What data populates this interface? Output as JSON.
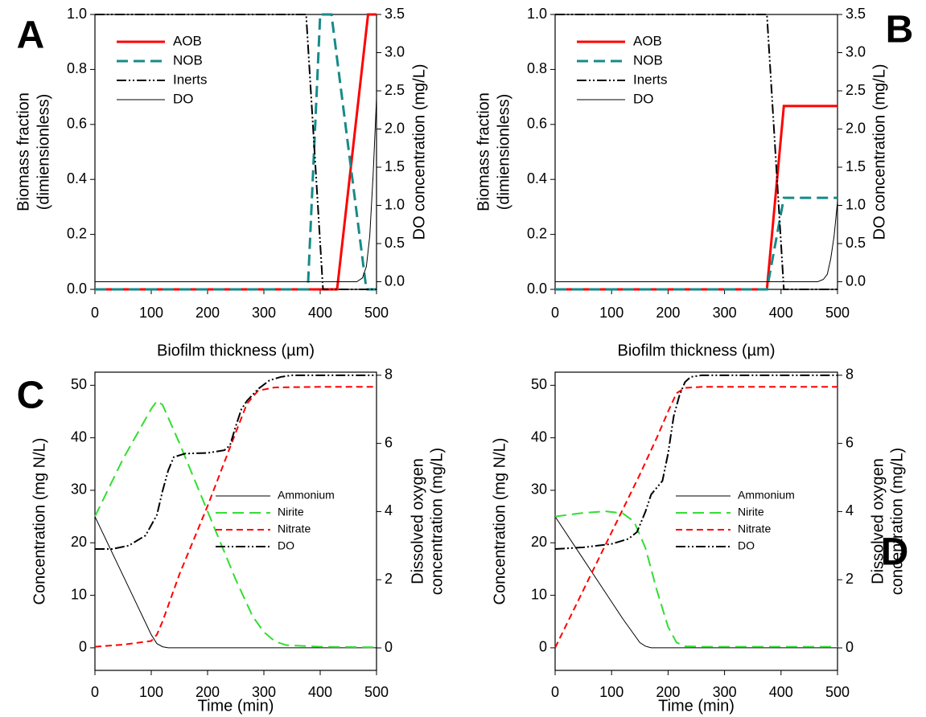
{
  "chart_data": [
    {
      "type": "line",
      "panel_label": "A",
      "xlabel": "Biofilm thickness (µm)",
      "ylabel": [
        "Biomass fraction",
        "(dimiensionless)"
      ],
      "y2label": [
        "DO concentration (mg/L)"
      ],
      "xlim": [
        0,
        500
      ],
      "xticks": [
        0,
        100,
        200,
        300,
        400,
        500
      ],
      "ylim": [
        0,
        1
      ],
      "yticks": [
        {
          "value": 0,
          "label": "0.0"
        },
        0.2,
        0.4,
        0.6,
        0.8,
        {
          "value": 1,
          "label": "1.0"
        }
      ],
      "y2lim": [
        -0.1,
        3.5
      ],
      "y2ticks": [
        {
          "value": 0,
          "label": "0.0"
        },
        0.5,
        {
          "value": 1,
          "label": "1.0"
        },
        1.5,
        {
          "value": 2,
          "label": "2.0"
        },
        2.5,
        {
          "value": 3,
          "label": "3.0"
        },
        3.5
      ],
      "legend": "upper left",
      "series": [
        {
          "name": "AOB",
          "color": "#ff0000",
          "dash": "solid",
          "width": 3,
          "x": [
            0,
            430,
            485,
            500
          ],
          "values": [
            0,
            0,
            1,
            1
          ]
        },
        {
          "name": "NOB",
          "color": "#168a8a",
          "dash": "long-dash",
          "width": 3,
          "x": [
            0,
            378,
            400,
            420,
            482,
            500
          ],
          "values": [
            0,
            0,
            1,
            1,
            0,
            0
          ]
        },
        {
          "name": "Inerts",
          "color": "#000000",
          "dash": "dash-dot-dot",
          "width": 2,
          "x": [
            0,
            375,
            405,
            500
          ],
          "values": [
            1,
            1,
            0,
            0
          ]
        },
        {
          "name": "DO",
          "color": "#000000",
          "dash": "solid",
          "width": 1,
          "axis": "y2",
          "x": [
            0,
            465,
            475,
            482,
            488,
            494,
            500
          ],
          "values": [
            0,
            0,
            0.05,
            0.2,
            0.6,
            1.4,
            2.4
          ]
        }
      ]
    },
    {
      "type": "line",
      "panel_label": "B",
      "xlabel": "Biofilm thickness (µm)",
      "ylabel": [
        "Biomass fraction",
        "(dimiensionless)"
      ],
      "y2label": [
        "DO concentration (mg/L)"
      ],
      "xlim": [
        0,
        500
      ],
      "xticks": [
        0,
        100,
        200,
        300,
        400,
        500
      ],
      "ylim": [
        0,
        1
      ],
      "yticks": [
        {
          "value": 0,
          "label": "0.0"
        },
        0.2,
        0.4,
        0.6,
        0.8,
        {
          "value": 1,
          "label": "1.0"
        }
      ],
      "y2lim": [
        -0.1,
        3.5
      ],
      "y2ticks": [
        {
          "value": 0,
          "label": "0.0"
        },
        0.5,
        {
          "value": 1,
          "label": "1.0"
        },
        1.5,
        {
          "value": 2,
          "label": "2.0"
        },
        2.5,
        {
          "value": 3,
          "label": "3.0"
        },
        3.5
      ],
      "legend": "upper left",
      "series": [
        {
          "name": "AOB",
          "color": "#ff0000",
          "dash": "solid",
          "width": 3,
          "x": [
            0,
            375,
            405,
            500
          ],
          "values": [
            0,
            0,
            0.667,
            0.667
          ]
        },
        {
          "name": "NOB",
          "color": "#168a8a",
          "dash": "long-dash",
          "width": 3,
          "x": [
            0,
            375,
            405,
            500
          ],
          "values": [
            0,
            0,
            0.333,
            0.333
          ]
        },
        {
          "name": "Inerts",
          "color": "#000000",
          "dash": "dash-dot-dot",
          "width": 2,
          "x": [
            0,
            375,
            405,
            500
          ],
          "values": [
            1,
            1,
            0,
            0
          ]
        },
        {
          "name": "DO",
          "color": "#000000",
          "dash": "solid",
          "width": 1,
          "axis": "y2",
          "x": [
            0,
            465,
            475,
            482,
            488,
            494,
            500
          ],
          "values": [
            0,
            0,
            0.03,
            0.1,
            0.3,
            0.6,
            1.05
          ]
        }
      ]
    },
    {
      "type": "line",
      "panel_label": "C",
      "xlabel": "Time (min)",
      "ylabel": [
        "Concentration (mg N/L)"
      ],
      "y2label": [
        "Dissolved oxygen",
        "concentration (mg/L)"
      ],
      "xlim": [
        0,
        500
      ],
      "xticks": [
        0,
        100,
        200,
        300,
        400,
        500
      ],
      "ylim": [
        -4.3,
        52.5
      ],
      "yticks": [
        0,
        10,
        20,
        30,
        40,
        50
      ],
      "y2lim": [
        -0.66,
        8.09
      ],
      "y2ticks": [
        0,
        2,
        4,
        6,
        8
      ],
      "legend": "center right",
      "series": [
        {
          "name": "Ammonium",
          "color": "#000000",
          "dash": "solid",
          "width": 1,
          "x": [
            0,
            20,
            40,
            60,
            80,
            100,
            110,
            120,
            130,
            500
          ],
          "values": [
            25,
            20.5,
            16,
            11.5,
            7,
            2.5,
            0.8,
            0.2,
            0,
            0
          ]
        },
        {
          "name": "Nirite",
          "color": "#33dd33",
          "dash": "long-dash",
          "width": 2,
          "x": [
            0,
            50,
            100,
            110,
            120,
            150,
            200,
            250,
            280,
            300,
            320,
            340,
            400,
            500
          ],
          "values": [
            25,
            36,
            45.5,
            47,
            46.3,
            39,
            26,
            13,
            6,
            3,
            1.2,
            0.5,
            0.2,
            0.1
          ]
        },
        {
          "name": "Nitrate",
          "color": "#ff0000",
          "dash": "dash",
          "width": 2,
          "x": [
            0,
            50,
            100,
            110,
            120,
            150,
            200,
            250,
            270,
            290,
            320,
            400,
            500
          ],
          "values": [
            0.2,
            0.6,
            1.3,
            2.5,
            5,
            14,
            27,
            41,
            46.5,
            49,
            49.6,
            49.7,
            49.7
          ]
        },
        {
          "name": "DO",
          "color": "#000000",
          "dash": "dash-dot-dot",
          "width": 2,
          "axis": "y2",
          "x": [
            0,
            30,
            60,
            90,
            110,
            120,
            130,
            140,
            160,
            200,
            230,
            240,
            250,
            260,
            270,
            290,
            310,
            330,
            350,
            500
          ],
          "values": [
            2.9,
            2.9,
            3.0,
            3.3,
            3.9,
            4.6,
            5.2,
            5.6,
            5.7,
            5.72,
            5.8,
            5.95,
            6.5,
            7.0,
            7.25,
            7.6,
            7.85,
            7.95,
            8.0,
            8.0
          ]
        }
      ]
    },
    {
      "type": "line",
      "panel_label": "D",
      "xlabel": "Time (min)",
      "ylabel": [
        "Concentration (mg N/L)"
      ],
      "y2label": [
        "Dissolved oxygen",
        "concentration (mg/L)"
      ],
      "xlim": [
        0,
        500
      ],
      "xticks": [
        0,
        100,
        200,
        300,
        400,
        500
      ],
      "ylim": [
        -4.3,
        52.5
      ],
      "yticks": [
        0,
        10,
        20,
        30,
        40,
        50
      ],
      "y2lim": [
        -0.66,
        8.09
      ],
      "y2ticks": [
        0,
        2,
        4,
        6,
        8
      ],
      "legend": "center right",
      "series": [
        {
          "name": "Ammonium",
          "color": "#000000",
          "dash": "solid",
          "width": 1,
          "x": [
            0,
            40,
            80,
            120,
            150,
            160,
            170,
            500
          ],
          "values": [
            25,
            18.5,
            12,
            5.5,
            1,
            0.3,
            0,
            0
          ]
        },
        {
          "name": "Nirite",
          "color": "#33dd33",
          "dash": "long-dash",
          "width": 2,
          "x": [
            0,
            50,
            90,
            120,
            140,
            160,
            180,
            200,
            215,
            230,
            260,
            500
          ],
          "values": [
            25,
            25.7,
            26,
            25.6,
            24,
            19,
            11,
            4,
            1,
            0.3,
            0.2,
            0.2
          ]
        },
        {
          "name": "Nitrate",
          "color": "#ff0000",
          "dash": "dash",
          "width": 2,
          "x": [
            0,
            50,
            100,
            150,
            180,
            200,
            215,
            230,
            260,
            500
          ],
          "values": [
            0,
            11,
            22,
            33,
            40,
            45,
            48.5,
            49.5,
            49.7,
            49.7
          ]
        },
        {
          "name": "DO",
          "color": "#000000",
          "dash": "dash-dot-dot",
          "width": 2,
          "axis": "y2",
          "x": [
            0,
            50,
            100,
            130,
            145,
            160,
            170,
            180,
            190,
            200,
            210,
            220,
            230,
            240,
            260,
            500
          ],
          "values": [
            2.9,
            2.95,
            3.05,
            3.2,
            3.4,
            4.0,
            4.5,
            4.7,
            4.9,
            5.7,
            6.8,
            7.4,
            7.8,
            7.95,
            8.0,
            8.0
          ]
        }
      ]
    }
  ]
}
